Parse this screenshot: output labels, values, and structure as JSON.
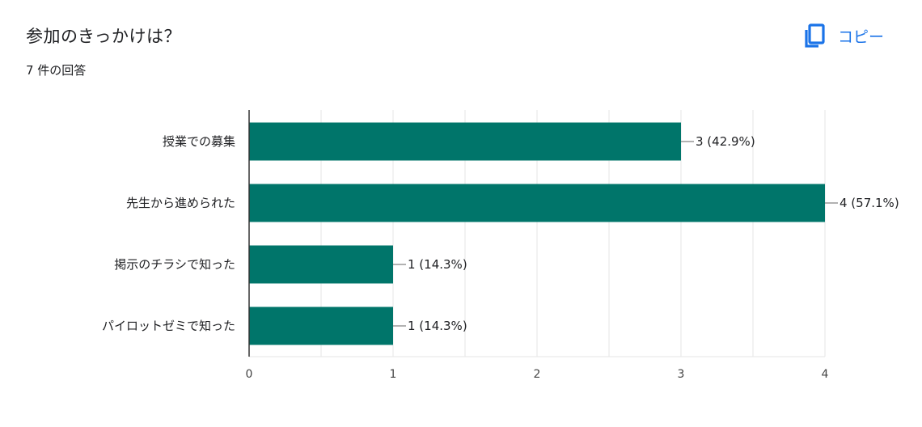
{
  "question": {
    "title": "参加のきっかけは？",
    "response_count": "7 件の回答"
  },
  "toolbar": {
    "copy_label": "コピー",
    "copy_icon": "copy-icon"
  },
  "colors": {
    "bar": "#00756a",
    "accent": "#1a73e8",
    "grid": "#e6e6e6",
    "axis": "#333333"
  },
  "chart_data": {
    "type": "bar",
    "orientation": "horizontal",
    "categories": [
      "授業での募集",
      "先生から進められた",
      "掲示のチラシで知った",
      "パイロットゼミで知った"
    ],
    "values": [
      3,
      4,
      1,
      1
    ],
    "data_labels": [
      "3 (42.9%)",
      "4 (57.1%)",
      "1 (14.3%)",
      "1 (14.3%)"
    ],
    "xlim": [
      0,
      4
    ],
    "xticks": [
      "0",
      "1",
      "2",
      "3",
      "4"
    ],
    "grid": true,
    "title": "",
    "xlabel": "",
    "ylabel": ""
  }
}
